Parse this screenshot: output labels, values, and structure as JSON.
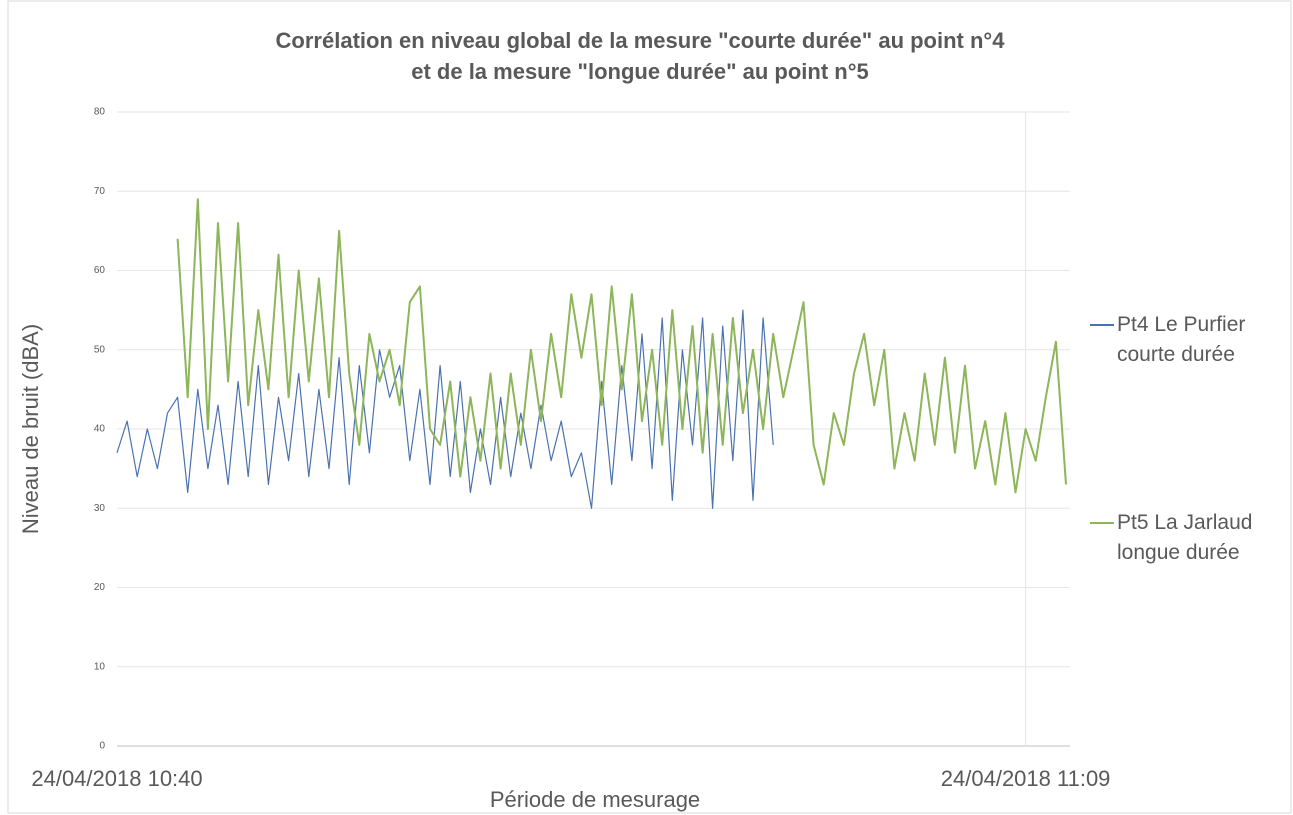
{
  "chart_data": {
    "type": "line",
    "title": [
      "Corrélation en niveau global de la mesure \"courte durée\" au point n°4",
      "et de la mesure \"longue durée\" au point n°5"
    ],
    "x_label": "Période de mesurage",
    "y_label": "Niveau de bruit (dBA)",
    "categories": [
      "24/04/2018 10:40",
      null,
      null,
      null,
      null,
      null,
      null,
      null,
      null,
      null,
      null,
      null,
      null,
      null,
      null,
      null,
      null,
      null,
      null,
      null,
      null,
      null,
      null,
      null,
      null,
      null,
      null,
      null,
      null,
      null,
      null,
      null,
      null,
      null,
      null,
      null,
      null,
      null,
      null,
      null,
      null,
      null,
      null,
      null,
      null,
      null,
      null,
      null,
      null,
      null,
      null,
      null,
      null,
      null,
      null,
      null,
      null,
      null,
      null,
      null,
      null,
      null,
      null,
      null,
      null,
      null,
      null,
      null,
      null,
      null,
      null,
      null,
      null,
      null,
      null,
      null,
      null,
      null,
      null,
      null,
      null,
      null,
      null,
      null,
      null,
      null,
      null,
      null,
      null,
      null,
      "24/04/2018 11:09",
      null,
      null,
      null,
      null
    ],
    "series": [
      {
        "name": "Pt4 Le Purfier courte durée",
        "color": "#4a72b0",
        "values": [
          37,
          41,
          34,
          40,
          35,
          42,
          44,
          32,
          45,
          35,
          43,
          33,
          46,
          34,
          48,
          33,
          44,
          36,
          47,
          34,
          45,
          35,
          49,
          33,
          48,
          37,
          50,
          44,
          48,
          36,
          45,
          33,
          48,
          34,
          46,
          32,
          40,
          33,
          44,
          34,
          42,
          35,
          43,
          36,
          41,
          34,
          37,
          30,
          46,
          33,
          48,
          36,
          52,
          35,
          54,
          31,
          50,
          38,
          54,
          30,
          53,
          36,
          55,
          31,
          54,
          38,
          null,
          null,
          null,
          null,
          null,
          null,
          null,
          null,
          null,
          null,
          null,
          null,
          null,
          null,
          null,
          null,
          null,
          null,
          null,
          null,
          null,
          null,
          null,
          null,
          null,
          null,
          null,
          null,
          null
        ]
      },
      {
        "name": "Pt5 La Jarlaud longue durée",
        "color": "#8db559",
        "values": [
          null,
          null,
          null,
          null,
          null,
          null,
          64,
          44,
          69,
          40,
          66,
          46,
          66,
          43,
          55,
          45,
          62,
          44,
          60,
          46,
          59,
          44,
          65,
          47,
          38,
          52,
          46,
          50,
          43,
          56,
          58,
          40,
          38,
          46,
          34,
          44,
          36,
          47,
          35,
          47,
          38,
          50,
          41,
          52,
          44,
          57,
          49,
          57,
          43,
          58,
          45,
          57,
          41,
          50,
          38,
          55,
          40,
          53,
          37,
          52,
          38,
          54,
          42,
          50,
          40,
          52,
          44,
          50,
          56,
          38,
          33,
          42,
          38,
          47,
          52,
          43,
          50,
          35,
          42,
          36,
          47,
          38,
          49,
          37,
          48,
          35,
          41,
          33,
          42,
          32,
          40,
          36,
          44,
          51,
          33
        ]
      }
    ],
    "ylim": [
      0,
      80
    ],
    "yticks": [
      0,
      10,
      20,
      30,
      40,
      50,
      60,
      70,
      80
    ],
    "grid": true,
    "legend": "right"
  }
}
